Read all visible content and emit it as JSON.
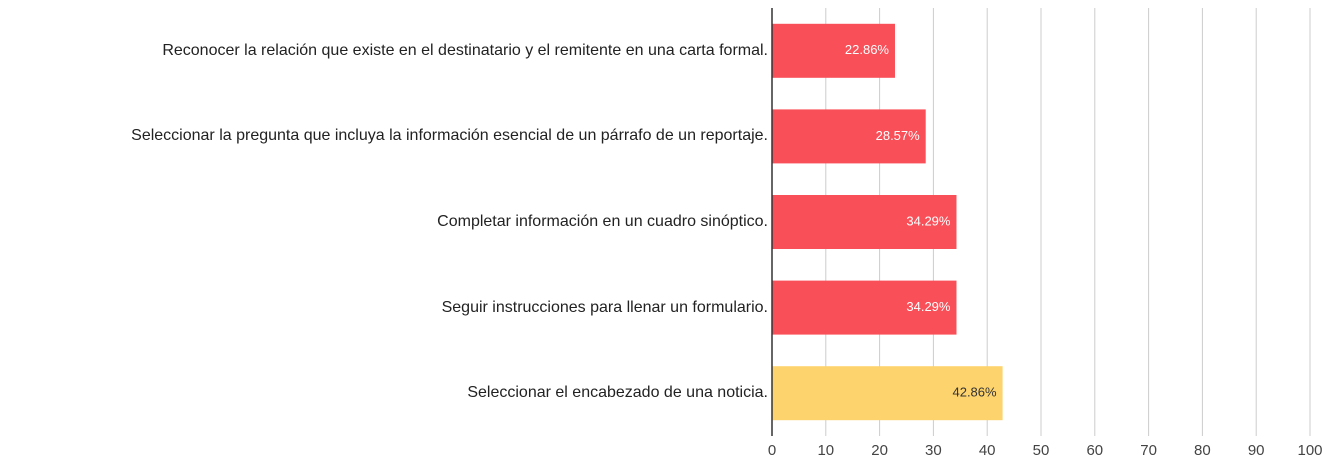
{
  "chart_data": {
    "type": "bar",
    "orientation": "horizontal",
    "categories": [
      "Reconocer la relación que existe en el destinatario y el remitente en una carta formal.",
      "Seleccionar la pregunta que incluya la información esencial de un párrafo de un reportaje.",
      "Completar información en un cuadro sinóptico.",
      "Seguir instrucciones para llenar un formulario.",
      "Seleccionar el encabezado de una noticia."
    ],
    "values": [
      22.86,
      28.57,
      34.29,
      34.29,
      42.86
    ],
    "value_labels": [
      "22.86%",
      "28.57%",
      "34.29%",
      "34.29%",
      "42.86%"
    ],
    "colors": [
      "#f94f58",
      "#f94f58",
      "#f94f58",
      "#f94f58",
      "#fdd36e"
    ],
    "xlim": [
      0,
      100
    ],
    "xticks": [
      0,
      10,
      20,
      30,
      40,
      50,
      60,
      70,
      80,
      90,
      100
    ],
    "grid": true
  }
}
